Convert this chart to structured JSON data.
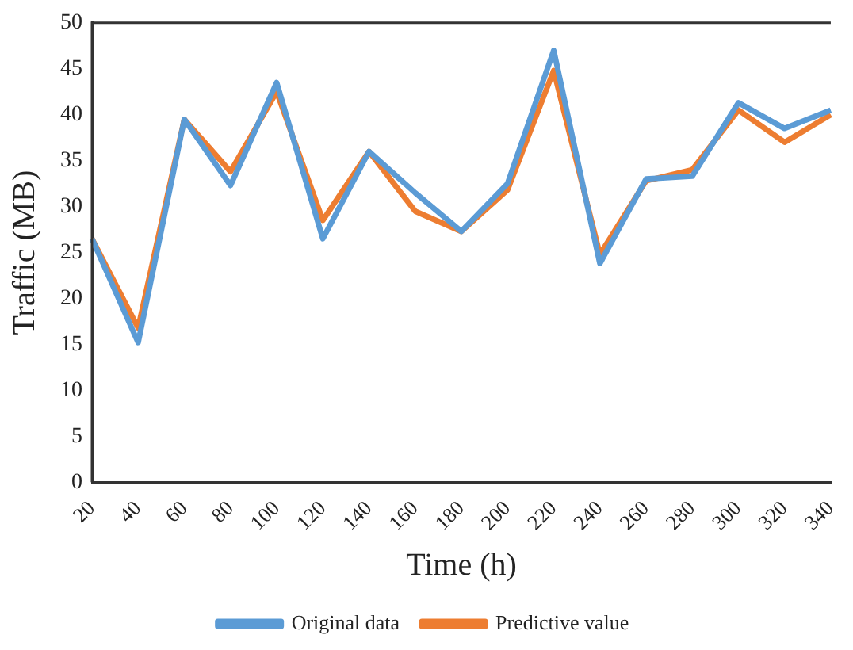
{
  "chart_data": {
    "type": "line",
    "xlabel": "Time (h)",
    "ylabel": "Traffic (MB)",
    "categories": [
      "20",
      "40",
      "60",
      "80",
      "100",
      "120",
      "140",
      "160",
      "180",
      "200",
      "220",
      "240",
      "260",
      "280",
      "300",
      "320",
      "340"
    ],
    "series": [
      {
        "name": "Original data",
        "color": "#5b9bd5",
        "values": [
          26.5,
          15.2,
          39.5,
          32.3,
          43.5,
          26.5,
          36,
          31.5,
          27.3,
          32.5,
          47,
          23.8,
          33,
          33.3,
          41.3,
          38.5,
          40.5
        ]
      },
      {
        "name": "Predictive value",
        "color": "#ed7d31",
        "values": [
          26.5,
          16.8,
          39.5,
          33.8,
          42.5,
          28.5,
          36,
          29.5,
          27.3,
          31.8,
          44.8,
          24.8,
          32.8,
          34,
          40.5,
          37,
          40
        ]
      }
    ],
    "ylim": [
      0,
      50
    ],
    "yticks": [
      0,
      5,
      10,
      15,
      20,
      25,
      30,
      35,
      40,
      45,
      50
    ],
    "grid": false,
    "legend": "bottom",
    "marker": "none",
    "line_style": "solid"
  }
}
